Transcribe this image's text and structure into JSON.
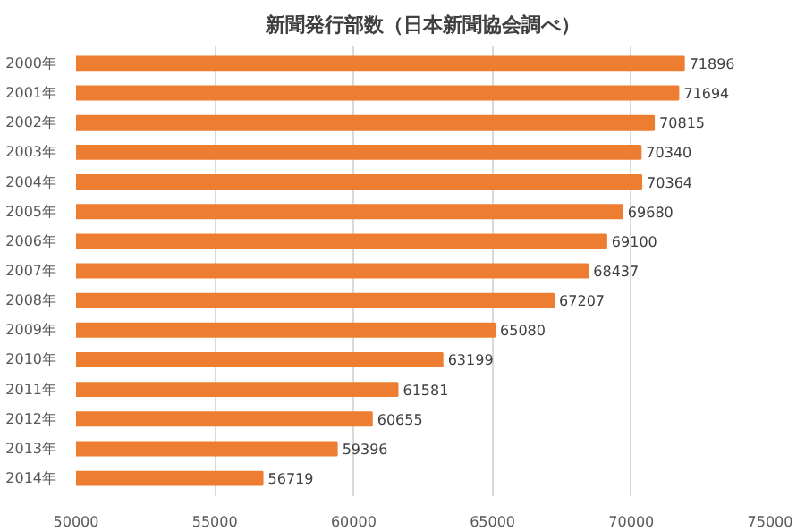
{
  "chart_data": {
    "type": "bar",
    "orientation": "horizontal",
    "title": "新聞発行部数（日本新聞協会調べ）",
    "categories": [
      "2000年",
      "2001年",
      "2002年",
      "2003年",
      "2004年",
      "2005年",
      "2006年",
      "2007年",
      "2008年",
      "2009年",
      "2010年",
      "2011年",
      "2012年",
      "2013年",
      "2014年"
    ],
    "values": [
      71896,
      71694,
      70815,
      70340,
      70364,
      69680,
      69100,
      68437,
      67207,
      65080,
      63199,
      61581,
      60655,
      59396,
      56719
    ],
    "color": "#ed7d31",
    "xlim": [
      50000,
      75000
    ],
    "xticks": [
      50000,
      55000,
      60000,
      65000,
      70000,
      75000
    ],
    "grid": "x",
    "data_labels": true
  }
}
